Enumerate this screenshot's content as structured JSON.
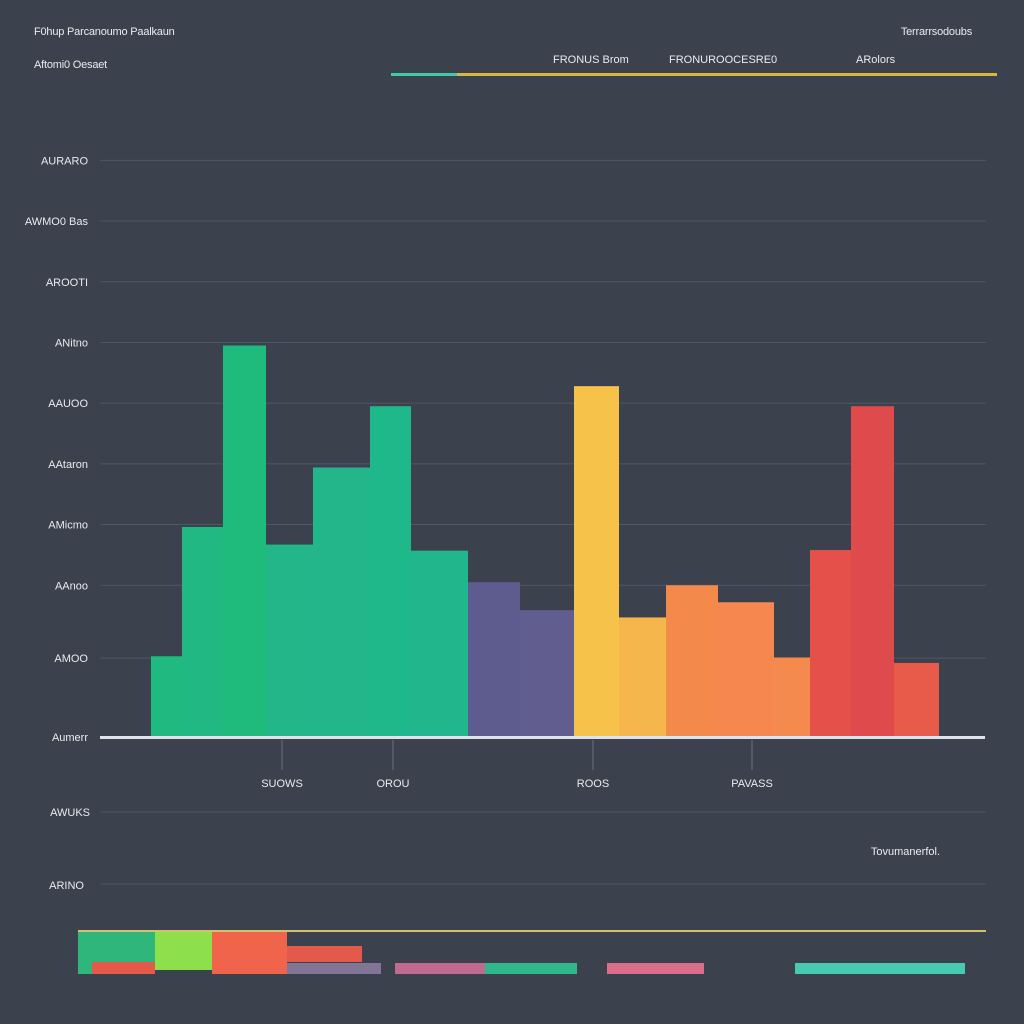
{
  "header": {
    "title": "F0hup Parcanoumo Paalkaun",
    "subtitle": "Aftomi0 Oesaet",
    "top_right": "Terrarrsodoubs"
  },
  "legend": [
    {
      "label": "FRONUS Brom",
      "color": "#2fbf9a"
    },
    {
      "label": "FRONUROOCESRE0",
      "color": "#f4c64a"
    },
    {
      "label": "ARolors",
      "color": "#e2474a"
    }
  ],
  "note": "Tovumanerfol.",
  "chart_data": {
    "type": "bar",
    "ylim": [
      0,
      1000
    ],
    "yticks": [
      {
        "value": 0,
        "label": "Aumerr"
      },
      {
        "value": 130,
        "label": "AMOO"
      },
      {
        "value": 250,
        "label": "AAnoo"
      },
      {
        "value": 350,
        "label": "AMicmo"
      },
      {
        "value": 450,
        "label": "AAtaron"
      },
      {
        "value": 550,
        "label": "AAUOO"
      },
      {
        "value": 650,
        "label": "ANitno"
      },
      {
        "value": 750,
        "label": "AROOTI"
      },
      {
        "value": 850,
        "label": "AWMO0 Bas"
      },
      {
        "value": 950,
        "label": "AURARO"
      }
    ],
    "xtick_labels": [
      "SUOWS",
      "OROU",
      "ROOS",
      "PAVASS"
    ],
    "bars": [
      {
        "value": 133,
        "color": "#20b97f"
      },
      {
        "value": 346,
        "color": "#22b883"
      },
      {
        "value": 645,
        "color": "#1fbb7d"
      },
      {
        "value": 317,
        "color": "#23b689"
      },
      {
        "value": 444,
        "color": "#22b68a"
      },
      {
        "value": 545,
        "color": "#1fb88b"
      },
      {
        "value": 307,
        "color": "#22b68c"
      },
      {
        "value": 255,
        "color": "#5e5c8f"
      },
      {
        "value": 209,
        "color": "#615d8e"
      },
      {
        "value": 578,
        "color": "#f6c24a"
      },
      {
        "value": 197,
        "color": "#f5b64c"
      },
      {
        "value": 250,
        "color": "#f4894c"
      },
      {
        "value": 222,
        "color": "#f5874f"
      },
      {
        "value": 131,
        "color": "#f48a4d"
      },
      {
        "value": 308,
        "color": "#e6504a"
      },
      {
        "value": 545,
        "color": "#df4a4c"
      },
      {
        "value": 122,
        "color": "#e85a49"
      }
    ],
    "scrubber_colors": [
      "#2fb67a",
      "#8de04b",
      "#f0644b",
      "#e25a4b",
      "#c06a8f",
      "#2fb88c",
      "#d96f8a",
      "#49c9b0"
    ]
  }
}
